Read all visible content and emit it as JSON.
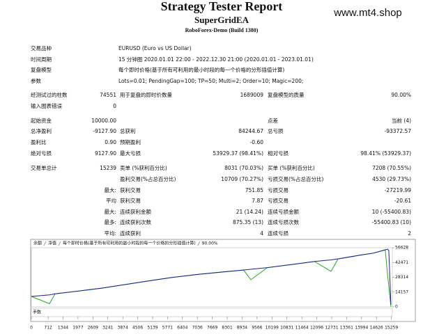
{
  "header": {
    "title": "Strategy Tester Report",
    "subtitle": "SuperGridEA",
    "build": "RoboForex-Demo (Build 1380)",
    "watermark": "www.mt4.shop"
  },
  "info": [
    {
      "label": "交易品种",
      "value": "EURUSD (Euro vs US Dollar)"
    },
    {
      "label": "时间周期",
      "value": "15 分钟图 2020.01.01 22:00 - 2022.12.30 21:00 (2020.01.01 - 2023.01.01)"
    },
    {
      "label": "复盘模型",
      "value": "每个即时价格(基于所有可利用的最小时段的每一个价格的分形插值计算)"
    },
    {
      "label": "参数",
      "value": "Lots=0.01; PendingGap=100; TP=50; Multi=2; Order=10; Magic=200;"
    }
  ],
  "stats": [
    [
      "经测试过的柱数",
      "74551",
      "用于复盘的即时价数量",
      "1689009",
      "复盘模型的质量",
      "90.00%"
    ],
    [
      "输入图表错误",
      "0",
      null,
      null,
      null,
      null
    ],
    [
      "起始资金",
      "10000.00",
      null,
      null,
      "点差",
      "当前 (4)"
    ],
    [
      "总净盈利",
      "-9127.90",
      "总获利",
      "84244.67",
      "总亏损",
      "-93372.57"
    ],
    [
      "盈利比",
      "0.90",
      "预期盈利",
      "-0.60",
      null,
      null
    ],
    [
      "绝对亏损",
      "9127.90",
      "最大亏损",
      "53929.37 (98.41%)",
      "相对亏损",
      "98.41% (53929.37)"
    ],
    [
      "交易单总计",
      "15239",
      "卖单 (%获利百分比)",
      "8031 (70.03%)",
      "买单 (%获利百分比)",
      "7208 (70.55%)"
    ],
    [
      null,
      null,
      "盈利交易(%占总百分比)",
      "10709 (70.27%)",
      "亏损交易(%占总百分比)",
      "4530 (29.73%)"
    ],
    [
      null,
      "最大:",
      "获利交易",
      "751.85",
      "亏损交易",
      "-27219.99"
    ],
    [
      null,
      "平均",
      "获利交易",
      "7.87",
      "亏损交易",
      "-20.61"
    ],
    [
      null,
      "最大:",
      "连续获利金额",
      "21 (14.24)",
      "连续亏损金额",
      "10 (-55400.83)"
    ],
    [
      null,
      "最多:",
      "连续获利次数",
      "875.35 (13)",
      "连续亏损次数",
      "-55400.83 (10)"
    ],
    [
      null,
      "平均:",
      "连续获利",
      "4",
      "连续亏损",
      "2"
    ]
  ],
  "chart": {
    "type": "line",
    "legend_note": "每个即时价格(基于所有可利用的最小时段的每一个价格的分形插值计算)",
    "quality": "90.00%",
    "lots_label": "手数",
    "x": [
      0,
      770,
      1000,
      2000,
      3000,
      4000,
      5000,
      6000,
      7000,
      8000,
      9000,
      9300,
      10000,
      11000,
      12000,
      12700,
      13000,
      14000,
      14500,
      15000,
      15100,
      15150,
      15239
    ],
    "series": [
      {
        "name": "余额",
        "color": "#1c1c9c",
        "values": [
          10000,
          11500,
          12500,
          15200,
          18000,
          21500,
          25000,
          28300,
          31000,
          33200,
          35300,
          36000,
          37600,
          40500,
          43500,
          45000,
          46000,
          49800,
          51500,
          54600,
          55200,
          54000,
          2000
        ]
      },
      {
        "name": "净值",
        "color": "#22aa22",
        "values": [
          10000,
          3000,
          12400,
          15100,
          17900,
          21400,
          24900,
          28200,
          30900,
          33100,
          35200,
          26000,
          37500,
          40400,
          43400,
          34000,
          45900,
          49700,
          51400,
          54500,
          30000,
          20000,
          100
        ]
      }
    ],
    "xlim": [
      0,
      15300
    ],
    "ylim": [
      0,
      56628
    ],
    "xticks": [
      0,
      712,
      1344,
      1977,
      2609,
      3241,
      3874,
      4506,
      5139,
      5771,
      6404,
      7036,
      7669,
      8301,
      8934,
      9566,
      10199,
      10831,
      11464,
      12096,
      12731,
      13361,
      13994,
      14626,
      15259
    ],
    "yticks": [
      0,
      14157,
      28314,
      42471,
      56628
    ]
  }
}
